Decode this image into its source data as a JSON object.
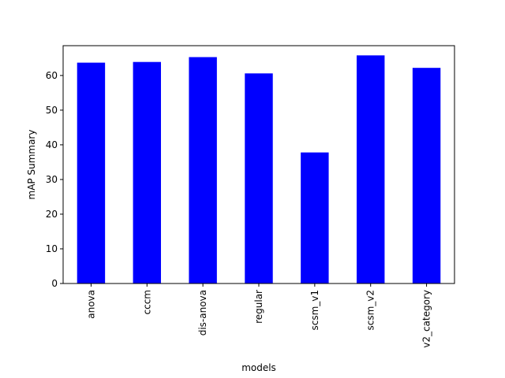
{
  "chart_data": {
    "type": "bar",
    "title": "",
    "xlabel": "models",
    "ylabel": "mAP Summary",
    "categories": [
      "anova",
      "cccm",
      "dis-anova",
      "regular",
      "scsm_v1",
      "scsm_v2",
      "v2_category"
    ],
    "values": [
      63.7,
      63.9,
      65.3,
      60.6,
      37.8,
      65.8,
      62.2
    ],
    "ylim": [
      0,
      68.6
    ],
    "yticks": [
      0,
      10,
      20,
      30,
      40,
      50,
      60
    ],
    "bar_color": "#0000ff",
    "grid": false,
    "legend": "none"
  }
}
